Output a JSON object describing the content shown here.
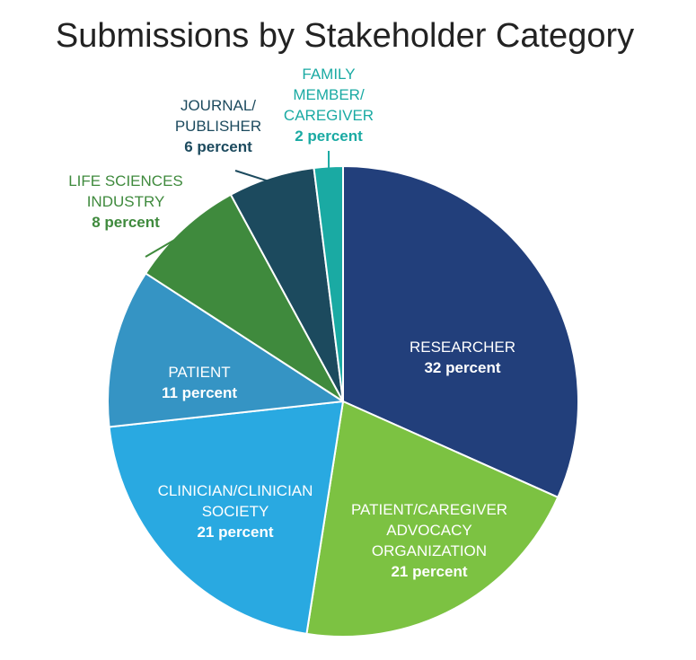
{
  "chart_data": {
    "type": "pie",
    "title": "Submissions by Stakeholder Category",
    "slices": [
      {
        "key": "researcher",
        "label_lines": [
          "RESEARCHER"
        ],
        "value": 32,
        "value_label": "32 percent",
        "color": "#223f7b",
        "label_color": "#ffffff",
        "label_placement": "inside"
      },
      {
        "key": "patient-caregiver-advocacy-organization",
        "label_lines": [
          "PATIENT/CAREGIVER",
          "ADVOCACY",
          "ORGANIZATION"
        ],
        "value": 21,
        "value_label": "21 percent",
        "color": "#7cc242",
        "label_color": "#ffffff",
        "label_placement": "inside"
      },
      {
        "key": "clinician-clinician-society",
        "label_lines": [
          "CLINICIAN/CLINICIAN",
          "SOCIETY"
        ],
        "value": 21,
        "value_label": "21 percent",
        "color": "#29a9e1",
        "label_color": "#ffffff",
        "label_placement": "inside"
      },
      {
        "key": "patient",
        "label_lines": [
          "PATIENT"
        ],
        "value": 11,
        "value_label": "11 percent",
        "color": "#3594c4",
        "label_color": "#ffffff",
        "label_placement": "inside"
      },
      {
        "key": "life-sciences-industry",
        "label_lines": [
          "LIFE SCIENCES",
          "INDUSTRY"
        ],
        "value": 8,
        "value_label": "8 percent",
        "color": "#3f8a3d",
        "label_color": "#3f8a3d",
        "label_placement": "outside"
      },
      {
        "key": "journal-publisher",
        "label_lines": [
          "JOURNAL/",
          "PUBLISHER"
        ],
        "value": 6,
        "value_label": "6 percent",
        "color": "#1c4a5e",
        "label_color": "#1c4a5e",
        "label_placement": "outside"
      },
      {
        "key": "family-member-caregiver",
        "label_lines": [
          "FAMILY",
          "MEMBER/",
          "CAREGIVER"
        ],
        "value": 2,
        "value_label": "2 percent",
        "color": "#1aaaa3",
        "label_color": "#1aaaa3",
        "label_placement": "outside"
      }
    ],
    "start_angle_deg": 0,
    "direction": "clockwise",
    "legend": "none"
  }
}
